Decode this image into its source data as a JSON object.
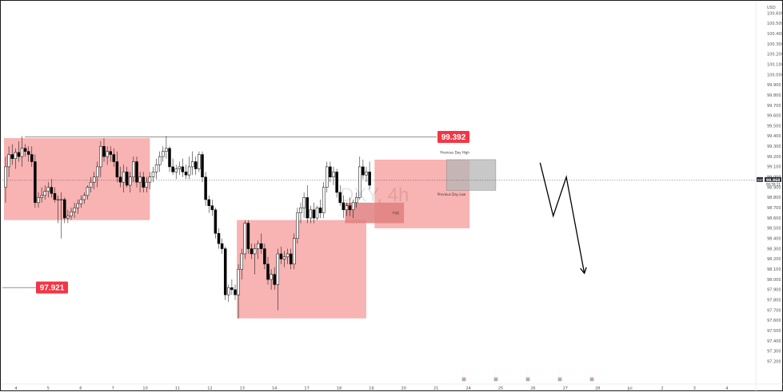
{
  "chart_data": {
    "type": "candlestick",
    "title": "",
    "watermark": "DXY, 4h",
    "currency_label": "USD",
    "ylim": [
      97.1,
      100.6
    ],
    "y_ticks": [
      "100.600",
      "100.500",
      "100.400",
      "100.300",
      "100.200",
      "100.100",
      "100.000",
      "99.900",
      "99.800",
      "99.700",
      "99.600",
      "99.500",
      "99.400",
      "99.300",
      "99.200",
      "99.100",
      "99.000",
      "98.900",
      "98.800",
      "98.700",
      "98.600",
      "98.500",
      "98.400",
      "98.300",
      "98.200",
      "98.100",
      "98.000",
      "97.900",
      "97.800",
      "97.700",
      "97.600",
      "97.500",
      "97.400",
      "97.300",
      "97.200"
    ],
    "x_ticks": [
      "4",
      "5",
      "6",
      "7",
      "10",
      "11",
      "12",
      "13",
      "14",
      "17",
      "18",
      "19",
      "20",
      "21",
      "24",
      "25",
      "26",
      "27",
      "28",
      "Jul",
      "2",
      "3",
      "4"
    ],
    "current_price": {
      "symbol": "DXY",
      "value": "98.968",
      "countdown": "00:59:11"
    },
    "levels": [
      {
        "label": "99.392",
        "value": 99.392,
        "color": "#f23645"
      },
      {
        "label": "97.921",
        "value": 97.921,
        "color": "#f23645"
      }
    ],
    "zones": [
      {
        "type": "supply",
        "label": "",
        "from": 0,
        "to": 43.5,
        "low": 98.58,
        "high": 99.38,
        "color": "#f7a6a6"
      },
      {
        "type": "demand",
        "label": "",
        "from": 71,
        "to": 109.5,
        "low": 97.62,
        "high": 98.58,
        "color": "#f7a6a6"
      },
      {
        "type": "range",
        "label": "",
        "from": 113,
        "to": 141,
        "low": 98.5,
        "high": 99.17,
        "color": "#f7a6a6"
      },
      {
        "type": "fvg",
        "label": "FVG",
        "from": 104,
        "to": 121,
        "low": 98.55,
        "high": 98.75,
        "color": "#e07f7f"
      },
      {
        "type": "box",
        "label": "",
        "from": 135,
        "to": 149,
        "low": 98.87,
        "high": 99.17,
        "color": "#b5b5b5"
      }
    ],
    "annotations": [
      {
        "text": "Previous Day High",
        "x": 137,
        "y": 99.23
      },
      {
        "text": "Previous Day Low",
        "x": 136,
        "y": 98.82
      }
    ],
    "projection": [
      [
        163,
        99.14
      ],
      [
        167,
        98.62
      ],
      [
        171,
        99.0
      ],
      [
        176.5,
        98.06
      ]
    ],
    "candles": [
      {
        "o": 98.9,
        "h": 99.2,
        "l": 98.75,
        "c": 99.1
      },
      {
        "o": 99.1,
        "h": 99.3,
        "l": 99.0,
        "c": 99.22
      },
      {
        "o": 99.22,
        "h": 99.32,
        "l": 99.12,
        "c": 99.18
      },
      {
        "o": 99.18,
        "h": 99.28,
        "l": 99.08,
        "c": 99.24
      },
      {
        "o": 99.24,
        "h": 99.35,
        "l": 99.15,
        "c": 99.2
      },
      {
        "o": 99.2,
        "h": 99.4,
        "l": 99.1,
        "c": 99.28
      },
      {
        "o": 99.28,
        "h": 99.32,
        "l": 99.2,
        "c": 99.25
      },
      {
        "o": 99.25,
        "h": 99.3,
        "l": 99.15,
        "c": 99.22
      },
      {
        "o": 99.22,
        "h": 99.3,
        "l": 99.1,
        "c": 99.15
      },
      {
        "o": 99.15,
        "h": 99.22,
        "l": 98.7,
        "c": 98.75
      },
      {
        "o": 98.75,
        "h": 98.85,
        "l": 98.7,
        "c": 98.8
      },
      {
        "o": 98.8,
        "h": 98.9,
        "l": 98.75,
        "c": 98.82
      },
      {
        "o": 98.82,
        "h": 98.92,
        "l": 98.78,
        "c": 98.86
      },
      {
        "o": 98.86,
        "h": 98.95,
        "l": 98.8,
        "c": 98.9
      },
      {
        "o": 98.9,
        "h": 98.98,
        "l": 98.8,
        "c": 98.84
      },
      {
        "o": 98.84,
        "h": 98.9,
        "l": 98.75,
        "c": 98.78
      },
      {
        "o": 98.78,
        "h": 98.82,
        "l": 98.55,
        "c": 98.78
      },
      {
        "o": 98.78,
        "h": 98.85,
        "l": 98.4,
        "c": 98.78
      },
      {
        "o": 98.78,
        "h": 98.8,
        "l": 98.55,
        "c": 98.6
      },
      {
        "o": 98.6,
        "h": 98.68,
        "l": 98.55,
        "c": 98.62
      },
      {
        "o": 98.62,
        "h": 98.7,
        "l": 98.58,
        "c": 98.66
      },
      {
        "o": 98.66,
        "h": 98.75,
        "l": 98.6,
        "c": 98.7
      },
      {
        "o": 98.7,
        "h": 98.78,
        "l": 98.64,
        "c": 98.74
      },
      {
        "o": 98.74,
        "h": 98.82,
        "l": 98.7,
        "c": 98.78
      },
      {
        "o": 98.78,
        "h": 98.85,
        "l": 98.74,
        "c": 98.82
      },
      {
        "o": 98.82,
        "h": 98.92,
        "l": 98.78,
        "c": 98.9
      },
      {
        "o": 98.9,
        "h": 99.0,
        "l": 98.85,
        "c": 98.95
      },
      {
        "o": 98.95,
        "h": 99.05,
        "l": 98.88,
        "c": 99.0
      },
      {
        "o": 99.0,
        "h": 99.15,
        "l": 98.9,
        "c": 99.1
      },
      {
        "o": 99.1,
        "h": 99.35,
        "l": 99.0,
        "c": 99.3
      },
      {
        "o": 99.3,
        "h": 99.38,
        "l": 99.15,
        "c": 99.2
      },
      {
        "o": 99.2,
        "h": 99.3,
        "l": 99.12,
        "c": 99.25
      },
      {
        "o": 99.25,
        "h": 99.3,
        "l": 99.15,
        "c": 99.22
      },
      {
        "o": 99.22,
        "h": 99.28,
        "l": 99.1,
        "c": 99.15
      },
      {
        "o": 99.15,
        "h": 99.25,
        "l": 98.95,
        "c": 99.0
      },
      {
        "o": 99.0,
        "h": 99.1,
        "l": 98.9,
        "c": 98.95
      },
      {
        "o": 98.95,
        "h": 99.12,
        "l": 98.85,
        "c": 99.05
      },
      {
        "o": 99.05,
        "h": 99.1,
        "l": 98.9,
        "c": 98.92
      },
      {
        "o": 98.92,
        "h": 99.05,
        "l": 98.85,
        "c": 99.0
      },
      {
        "o": 99.0,
        "h": 99.2,
        "l": 98.95,
        "c": 99.15
      },
      {
        "o": 99.15,
        "h": 99.2,
        "l": 98.9,
        "c": 98.95
      },
      {
        "o": 98.95,
        "h": 99.05,
        "l": 98.85,
        "c": 99.0
      },
      {
        "o": 99.0,
        "h": 99.05,
        "l": 98.85,
        "c": 98.9
      },
      {
        "o": 98.9,
        "h": 99.0,
        "l": 98.85,
        "c": 98.95
      },
      {
        "o": 98.95,
        "h": 99.05,
        "l": 98.88,
        "c": 99.0
      },
      {
        "o": 99.0,
        "h": 99.1,
        "l": 98.95,
        "c": 99.05
      },
      {
        "o": 99.05,
        "h": 99.18,
        "l": 98.98,
        "c": 99.12
      },
      {
        "o": 99.12,
        "h": 99.25,
        "l": 99.05,
        "c": 99.2
      },
      {
        "o": 99.2,
        "h": 99.3,
        "l": 99.15,
        "c": 99.25
      },
      {
        "o": 99.25,
        "h": 99.4,
        "l": 99.18,
        "c": 99.28
      },
      {
        "o": 99.28,
        "h": 99.3,
        "l": 99.05,
        "c": 99.1
      },
      {
        "o": 99.1,
        "h": 99.18,
        "l": 99.02,
        "c": 99.05
      },
      {
        "o": 99.05,
        "h": 99.12,
        "l": 98.98,
        "c": 99.08
      },
      {
        "o": 99.08,
        "h": 99.15,
        "l": 99.02,
        "c": 99.1
      },
      {
        "o": 99.1,
        "h": 99.18,
        "l": 99.0,
        "c": 99.05
      },
      {
        "o": 99.05,
        "h": 99.12,
        "l": 98.98,
        "c": 99.02
      },
      {
        "o": 99.02,
        "h": 99.2,
        "l": 98.98,
        "c": 99.1
      },
      {
        "o": 99.1,
        "h": 99.25,
        "l": 99.02,
        "c": 99.15
      },
      {
        "o": 99.15,
        "h": 99.2,
        "l": 99.02,
        "c": 99.08
      },
      {
        "o": 99.08,
        "h": 99.25,
        "l": 99.05,
        "c": 99.22
      },
      {
        "o": 99.22,
        "h": 99.25,
        "l": 98.95,
        "c": 99.0
      },
      {
        "o": 99.0,
        "h": 99.05,
        "l": 98.72,
        "c": 98.78
      },
      {
        "o": 98.78,
        "h": 98.82,
        "l": 98.65,
        "c": 98.72
      },
      {
        "o": 98.72,
        "h": 98.78,
        "l": 98.62,
        "c": 98.68
      },
      {
        "o": 98.68,
        "h": 98.7,
        "l": 98.4,
        "c": 98.45
      },
      {
        "o": 98.45,
        "h": 98.5,
        "l": 98.3,
        "c": 98.35
      },
      {
        "o": 98.35,
        "h": 98.4,
        "l": 98.25,
        "c": 98.3
      },
      {
        "o": 98.3,
        "h": 98.32,
        "l": 97.8,
        "c": 97.85
      },
      {
        "o": 97.85,
        "h": 97.95,
        "l": 97.78,
        "c": 97.92
      },
      {
        "o": 97.92,
        "h": 98.0,
        "l": 97.85,
        "c": 97.9
      },
      {
        "o": 97.9,
        "h": 97.95,
        "l": 97.8,
        "c": 97.85
      },
      {
        "o": 97.85,
        "h": 98.15,
        "l": 97.62,
        "c": 98.1
      },
      {
        "o": 98.1,
        "h": 98.3,
        "l": 98.0,
        "c": 98.25
      },
      {
        "o": 98.25,
        "h": 98.58,
        "l": 98.2,
        "c": 98.55
      },
      {
        "o": 98.55,
        "h": 98.58,
        "l": 98.25,
        "c": 98.3
      },
      {
        "o": 98.3,
        "h": 98.35,
        "l": 98.2,
        "c": 98.25
      },
      {
        "o": 98.25,
        "h": 98.35,
        "l": 98.05,
        "c": 98.3
      },
      {
        "o": 98.3,
        "h": 98.38,
        "l": 98.2,
        "c": 98.35
      },
      {
        "o": 98.35,
        "h": 98.45,
        "l": 98.25,
        "c": 98.3
      },
      {
        "o": 98.3,
        "h": 98.35,
        "l": 98.1,
        "c": 98.15
      },
      {
        "o": 98.15,
        "h": 98.22,
        "l": 97.95,
        "c": 98.0
      },
      {
        "o": 98.0,
        "h": 98.1,
        "l": 97.9,
        "c": 98.05
      },
      {
        "o": 98.05,
        "h": 98.12,
        "l": 97.9,
        "c": 97.95
      },
      {
        "o": 97.95,
        "h": 98.3,
        "l": 97.7,
        "c": 98.25
      },
      {
        "o": 98.25,
        "h": 98.32,
        "l": 98.15,
        "c": 98.2
      },
      {
        "o": 98.2,
        "h": 98.28,
        "l": 98.12,
        "c": 98.22
      },
      {
        "o": 98.22,
        "h": 98.3,
        "l": 98.15,
        "c": 98.25
      },
      {
        "o": 98.25,
        "h": 98.3,
        "l": 98.1,
        "c": 98.15
      },
      {
        "o": 98.15,
        "h": 98.45,
        "l": 98.1,
        "c": 98.4
      },
      {
        "o": 98.4,
        "h": 98.7,
        "l": 98.35,
        "c": 98.65
      },
      {
        "o": 98.65,
        "h": 98.75,
        "l": 98.55,
        "c": 98.7
      },
      {
        "o": 98.7,
        "h": 98.85,
        "l": 98.6,
        "c": 98.8
      },
      {
        "o": 98.8,
        "h": 98.92,
        "l": 98.55,
        "c": 98.6
      },
      {
        "o": 98.6,
        "h": 98.72,
        "l": 98.55,
        "c": 98.68
      },
      {
        "o": 98.68,
        "h": 98.75,
        "l": 98.55,
        "c": 98.6
      },
      {
        "o": 98.6,
        "h": 98.72,
        "l": 98.58,
        "c": 98.7
      },
      {
        "o": 98.7,
        "h": 98.78,
        "l": 98.6,
        "c": 98.65
      },
      {
        "o": 98.65,
        "h": 98.95,
        "l": 98.6,
        "c": 98.9
      },
      {
        "o": 98.9,
        "h": 99.15,
        "l": 98.85,
        "c": 99.1
      },
      {
        "o": 99.1,
        "h": 99.15,
        "l": 98.95,
        "c": 99.0
      },
      {
        "o": 99.0,
        "h": 99.1,
        "l": 98.92,
        "c": 99.05
      },
      {
        "o": 99.05,
        "h": 99.08,
        "l": 98.8,
        "c": 98.85
      },
      {
        "o": 98.85,
        "h": 98.92,
        "l": 98.72,
        "c": 98.75
      },
      {
        "o": 98.75,
        "h": 98.82,
        "l": 98.6,
        "c": 98.68
      },
      {
        "o": 98.68,
        "h": 98.75,
        "l": 98.62,
        "c": 98.72
      },
      {
        "o": 98.72,
        "h": 98.8,
        "l": 98.62,
        "c": 98.68
      },
      {
        "o": 98.68,
        "h": 98.78,
        "l": 98.6,
        "c": 98.75
      },
      {
        "o": 98.75,
        "h": 98.85,
        "l": 98.7,
        "c": 98.8
      },
      {
        "o": 98.8,
        "h": 99.2,
        "l": 98.78,
        "c": 99.1
      },
      {
        "o": 99.1,
        "h": 99.17,
        "l": 98.98,
        "c": 99.02
      },
      {
        "o": 99.02,
        "h": 99.1,
        "l": 98.95,
        "c": 99.05
      },
      {
        "o": 99.05,
        "h": 99.15,
        "l": 98.88,
        "c": 98.92
      }
    ]
  }
}
